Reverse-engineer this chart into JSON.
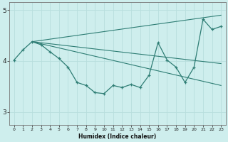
{
  "title": "",
  "xlabel": "Humidex (Indice chaleur)",
  "ylabel": "",
  "bg_color": "#ceeeed",
  "line_color": "#2e7d74",
  "grid_color": "#b8dedd",
  "x_vals": [
    0,
    1,
    2,
    3,
    4,
    5,
    6,
    7,
    8,
    9,
    10,
    11,
    12,
    13,
    14,
    15,
    16,
    17,
    18,
    19,
    20,
    21,
    22,
    23
  ],
  "y_main": [
    4.02,
    4.22,
    4.38,
    4.32,
    4.18,
    4.05,
    3.88,
    3.58,
    3.52,
    3.38,
    3.36,
    3.52,
    3.48,
    3.54,
    3.48,
    3.72,
    4.36,
    4.02,
    3.88,
    3.58,
    3.88,
    4.82,
    4.62,
    4.68
  ],
  "y_line1_start_x": 2,
  "y_line1_start_y": 4.38,
  "y_line1_end_x": 23,
  "y_line1_end_y": 4.9,
  "y_line2_start_x": 2,
  "y_line2_start_y": 4.38,
  "y_line2_end_x": 23,
  "y_line2_end_y": 3.95,
  "y_line3_start_x": 2,
  "y_line3_start_y": 4.38,
  "y_line3_end_x": 23,
  "y_line3_end_y": 3.52,
  "xlim": [
    -0.5,
    23.5
  ],
  "ylim": [
    2.75,
    5.15
  ],
  "yticks": [
    3,
    4,
    5
  ],
  "xticks": [
    0,
    1,
    2,
    3,
    4,
    5,
    6,
    7,
    8,
    9,
    10,
    11,
    12,
    13,
    14,
    15,
    16,
    17,
    18,
    19,
    20,
    21,
    22,
    23
  ],
  "figsize": [
    3.2,
    2.0
  ],
  "dpi": 100
}
